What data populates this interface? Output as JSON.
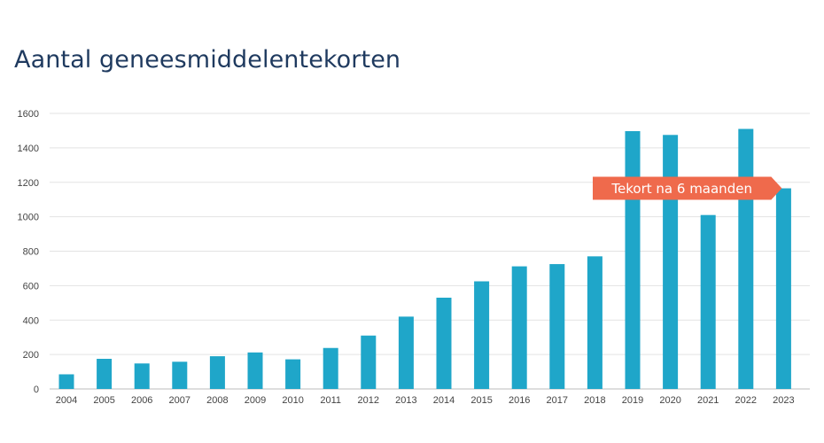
{
  "title": "Aantal geneesmiddelentekorten",
  "chart_data": {
    "type": "bar",
    "title": "Aantal geneesmiddelentekorten",
    "xlabel": "",
    "ylabel": "",
    "categories": [
      "2004",
      "2005",
      "2006",
      "2007",
      "2008",
      "2009",
      "2010",
      "2011",
      "2012",
      "2013",
      "2014",
      "2015",
      "2016",
      "2017",
      "2018",
      "2019",
      "2020",
      "2021",
      "2022",
      "2023"
    ],
    "values": [
      85,
      175,
      148,
      158,
      190,
      212,
      172,
      238,
      310,
      420,
      530,
      625,
      712,
      725,
      770,
      1497,
      1475,
      1010,
      1510,
      1165
    ],
    "ylim": [
      0,
      1600
    ],
    "yticks": [
      0,
      200,
      400,
      600,
      800,
      1000,
      1200,
      1400,
      1600
    ],
    "grid": true,
    "bar_color": "#1fa6c9",
    "annotation": {
      "text": "Tekort na 6 maanden",
      "value": 1165,
      "color": "#ef6a4c"
    }
  }
}
